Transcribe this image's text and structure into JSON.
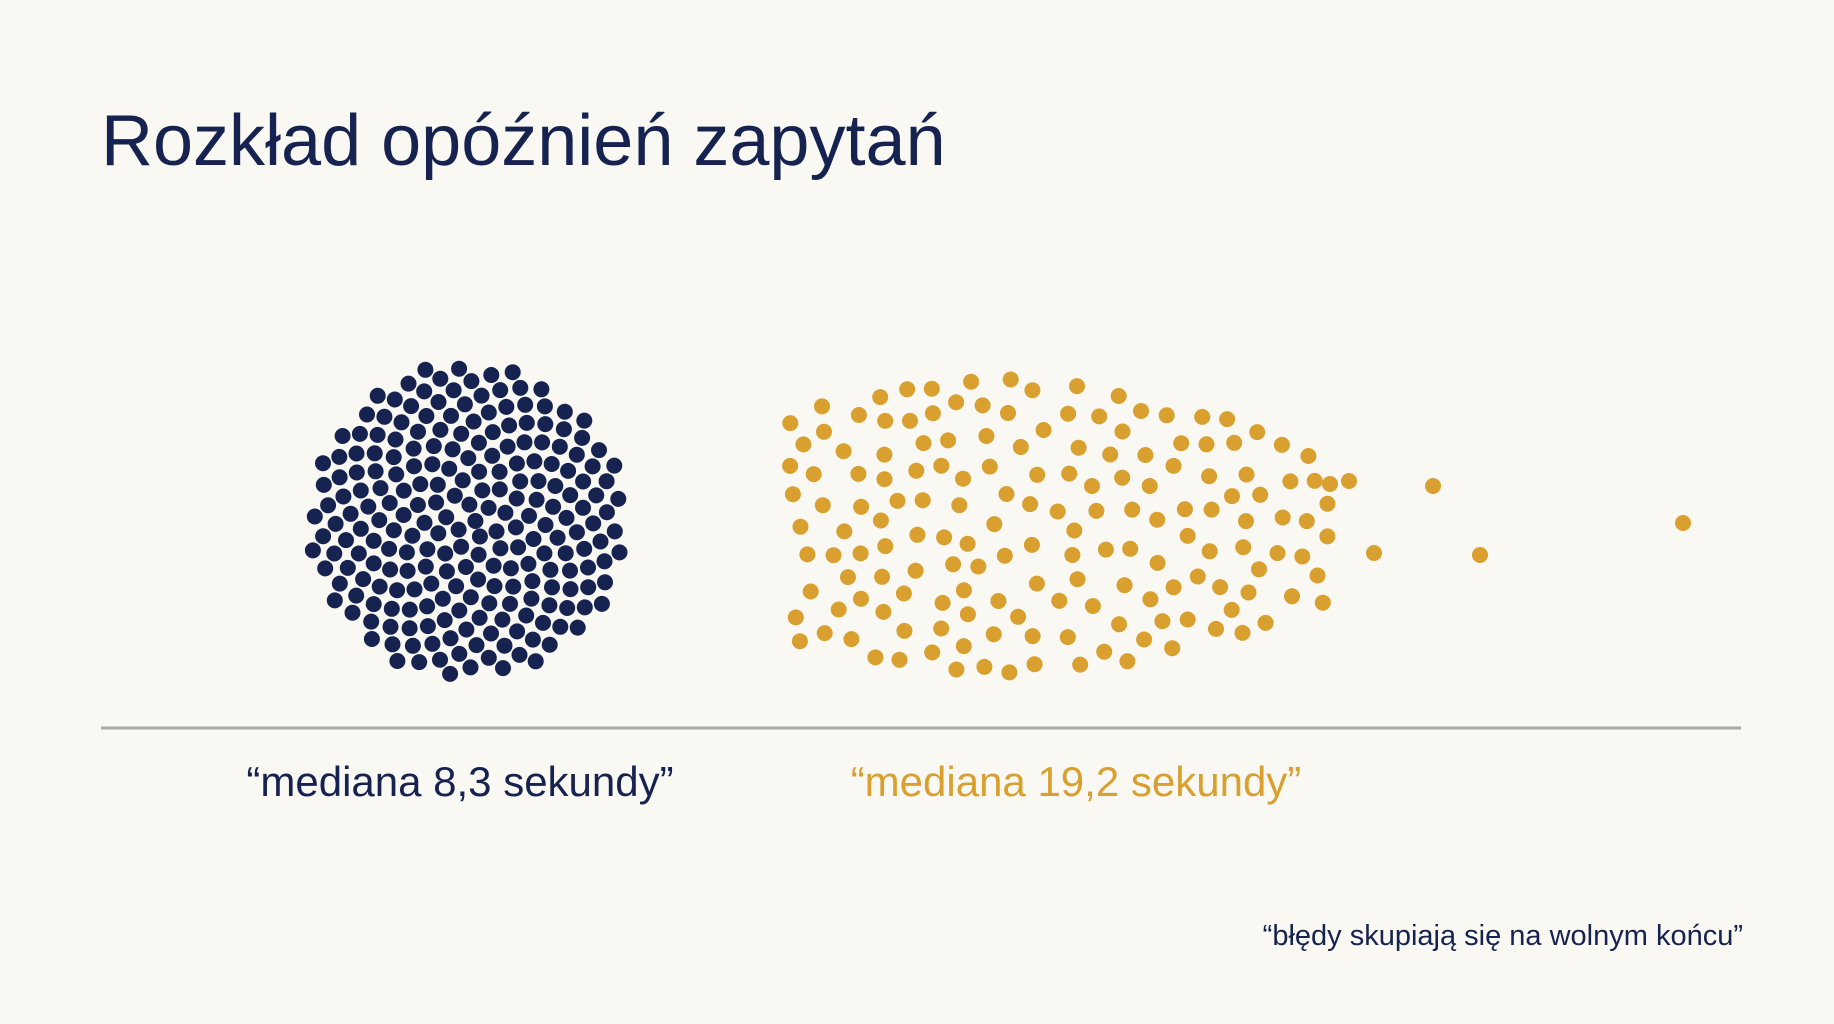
{
  "title": "Rozkład opóźnień zapytań",
  "groups": [
    {
      "label": "“mediana 8,3 sekundy”"
    },
    {
      "label": "“mediana 19,2 sekundy”"
    }
  ],
  "note": "“błędy skupiają się na wolnym końcu”"
}
